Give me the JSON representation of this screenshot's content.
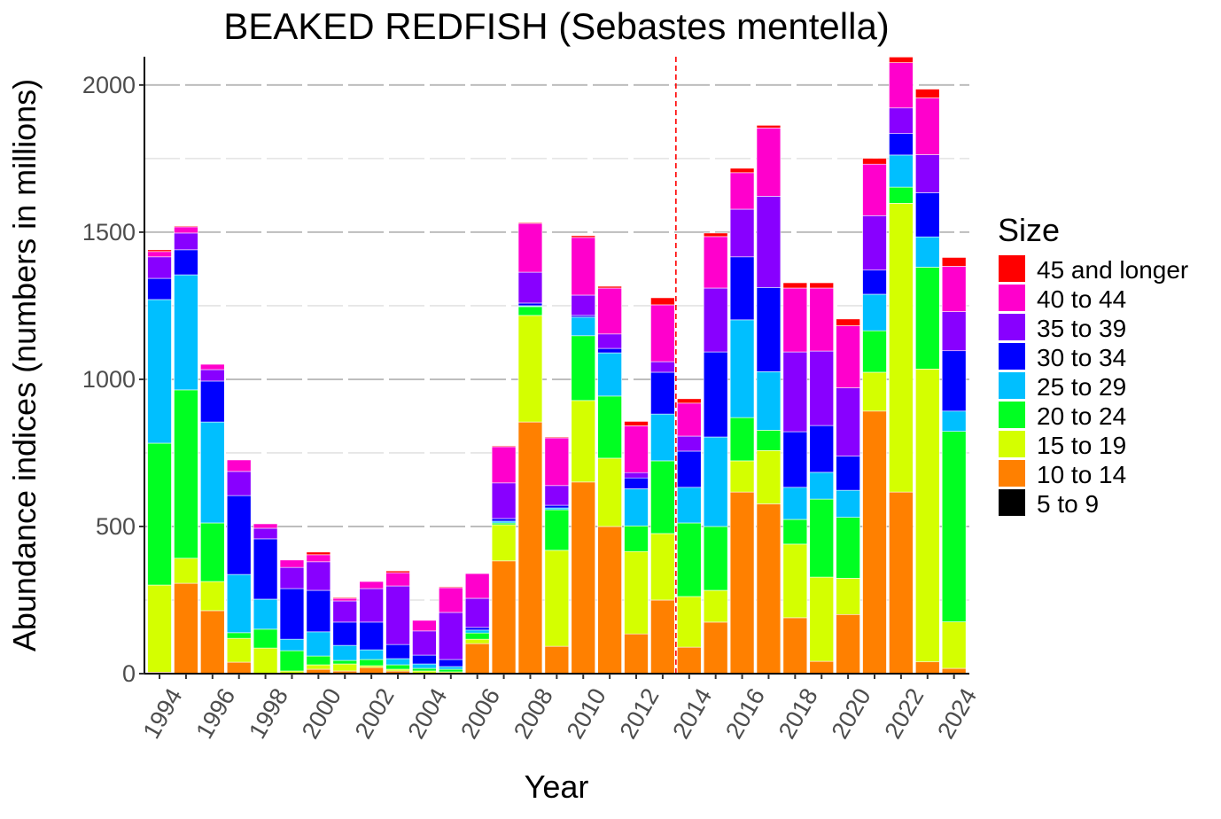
{
  "chart_data": {
    "type": "bar",
    "stacked": true,
    "title": "BEAKED REDFISH (Sebastes mentella)",
    "xlabel": "Year",
    "ylabel": "Abundance indices (numbers in millions)",
    "ylim": [
      0,
      2096
    ],
    "yticks": [
      0,
      500,
      1000,
      1500,
      2000
    ],
    "grid": true,
    "legend_title": "Size",
    "legend_position": "right",
    "reference_line": {
      "x": 2013.5,
      "style": "dashed",
      "color": "#FF0000"
    },
    "categories": [
      1994,
      1995,
      1996,
      1997,
      1998,
      1999,
      2000,
      2001,
      2002,
      2003,
      2004,
      2005,
      2006,
      2007,
      2008,
      2009,
      2010,
      2011,
      2012,
      2013,
      2014,
      2015,
      2016,
      2017,
      2018,
      2019,
      2020,
      2021,
      2022,
      2023,
      2024
    ],
    "xtick_labels": [
      "1994",
      "1996",
      "1998",
      "2000",
      "2002",
      "2004",
      "2006",
      "2008",
      "2010",
      "2012",
      "2014",
      "2016",
      "2018",
      "2020",
      "2022",
      "2024"
    ],
    "series": [
      {
        "name": "5 to 9",
        "color": "#000000",
        "values": [
          0,
          0,
          0,
          0,
          0,
          0,
          0,
          0,
          0,
          0,
          0,
          0,
          0,
          0,
          0,
          0,
          0,
          0,
          2,
          0,
          0,
          0,
          0,
          2,
          0,
          0,
          2,
          2,
          0,
          0,
          0
        ]
      },
      {
        "name": "10 to 14",
        "color": "#FF8000",
        "values": [
          5,
          307,
          214,
          39,
          2,
          2,
          15,
          9,
          21,
          9,
          1,
          1,
          102,
          383,
          855,
          93,
          651,
          500,
          133,
          250,
          90,
          175,
          617,
          575,
          190,
          42,
          199,
          890,
          617,
          40,
          18
        ]
      },
      {
        "name": "15 to 19",
        "color": "#D4FF00",
        "values": [
          296,
          85,
          99,
          81,
          85,
          7,
          15,
          24,
          6,
          6,
          8,
          5,
          15,
          123,
          362,
          326,
          277,
          232,
          280,
          226,
          172,
          108,
          106,
          181,
          250,
          286,
          123,
          132,
          981,
          995,
          158
        ]
      },
      {
        "name": "20 to 24",
        "color": "#00FF22",
        "values": [
          482,
          572,
          199,
          19,
          64,
          69,
          30,
          12,
          21,
          15,
          9,
          9,
          21,
          6,
          30,
          138,
          220,
          211,
          87,
          247,
          250,
          217,
          147,
          69,
          84,
          265,
          207,
          141,
          55,
          346,
          647
        ]
      },
      {
        "name": "25 to 29",
        "color": "#00BFFF",
        "values": [
          488,
          391,
          343,
          198,
          102,
          39,
          82,
          51,
          33,
          21,
          15,
          9,
          10,
          6,
          3,
          6,
          63,
          147,
          126,
          159,
          121,
          304,
          332,
          199,
          109,
          91,
          92,
          124,
          109,
          103,
          69
        ]
      },
      {
        "name": "30 to 34",
        "color": "#0000FF",
        "values": [
          72,
          85,
          139,
          268,
          205,
          172,
          141,
          79,
          94,
          48,
          30,
          24,
          9,
          9,
          9,
          9,
          6,
          15,
          37,
          142,
          123,
          289,
          214,
          286,
          189,
          159,
          116,
          82,
          73,
          150,
          205
        ]
      },
      {
        "name": "35 to 39",
        "color": "#8800FF",
        "values": [
          73,
          57,
          39,
          82,
          36,
          72,
          97,
          72,
          114,
          199,
          82,
          160,
          99,
          121,
          105,
          67,
          69,
          49,
          18,
          36,
          51,
          217,
          162,
          310,
          271,
          253,
          232,
          185,
          87,
          129,
          133
        ]
      },
      {
        "name": "40 to 44",
        "color": "#FF00CC",
        "values": [
          18,
          21,
          18,
          39,
          15,
          25,
          24,
          9,
          24,
          45,
          36,
          84,
          84,
          123,
          166,
          162,
          196,
          156,
          159,
          193,
          112,
          175,
          124,
          232,
          217,
          214,
          211,
          175,
          154,
          193,
          154
        ]
      },
      {
        "name": "45 and longer",
        "color": "#FF0000",
        "values": [
          6,
          3,
          0,
          0,
          0,
          0,
          9,
          3,
          0,
          6,
          0,
          3,
          0,
          3,
          3,
          3,
          6,
          6,
          15,
          24,
          15,
          12,
          15,
          9,
          18,
          18,
          23,
          20,
          19,
          30,
          30
        ]
      }
    ]
  }
}
